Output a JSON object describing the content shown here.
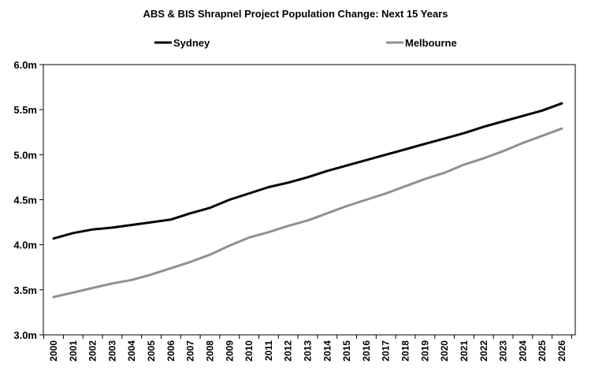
{
  "chart_data": {
    "type": "line",
    "title": "ABS & BIS Shrapnel Project Population Change: Next 15 Years",
    "xlabel": "",
    "ylabel": "",
    "ylim": [
      3.0,
      6.0
    ],
    "grid": false,
    "legend_position": "top",
    "y_ticks": [
      {
        "value": 3.0,
        "label": "3.0m"
      },
      {
        "value": 3.5,
        "label": "3.5m"
      },
      {
        "value": 4.0,
        "label": "4.0m"
      },
      {
        "value": 4.5,
        "label": "4.5m"
      },
      {
        "value": 5.0,
        "label": "5.0m"
      },
      {
        "value": 5.5,
        "label": "5.5m"
      },
      {
        "value": 6.0,
        "label": "6.0m"
      }
    ],
    "categories": [
      "2000",
      "2001",
      "2002",
      "2003",
      "2004",
      "2005",
      "2006",
      "2007",
      "2008",
      "2009",
      "2010",
      "2011",
      "2012",
      "2013",
      "2014",
      "2015",
      "2016",
      "2017",
      "2018",
      "2019",
      "2020",
      "2021",
      "2022",
      "2023",
      "2024",
      "2025",
      "2026"
    ],
    "series": [
      {
        "name": "Sydney",
        "color": "#000000",
        "values": [
          4.07,
          4.13,
          4.17,
          4.19,
          4.22,
          4.25,
          4.28,
          4.35,
          4.41,
          4.5,
          4.57,
          4.64,
          4.69,
          4.75,
          4.82,
          4.88,
          4.94,
          5.0,
          5.06,
          5.12,
          5.18,
          5.24,
          5.31,
          5.37,
          5.43,
          5.49,
          5.57
        ]
      },
      {
        "name": "Melbourne",
        "color": "#909090",
        "values": [
          3.42,
          3.47,
          3.52,
          3.57,
          3.61,
          3.67,
          3.74,
          3.81,
          3.89,
          3.99,
          4.08,
          4.14,
          4.21,
          4.27,
          4.35,
          4.43,
          4.5,
          4.57,
          4.65,
          4.73,
          4.8,
          4.89,
          4.96,
          5.04,
          5.13,
          5.21,
          5.29
        ]
      }
    ]
  }
}
